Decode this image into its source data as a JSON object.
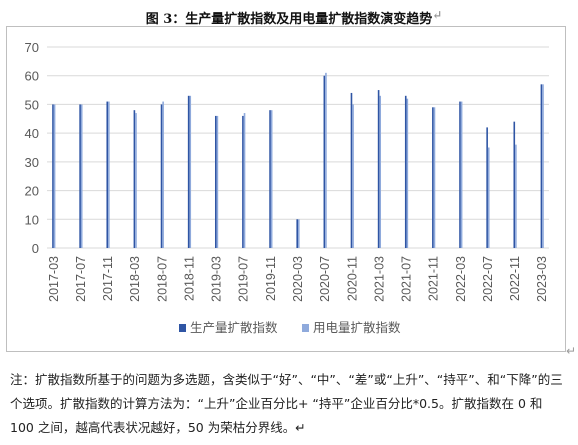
{
  "title": "图 3：生产量扩散指数及用电量扩散指数演变趋势",
  "title_mark": "↵",
  "note": "注：扩散指数所基于的问题为多选题，含类似于“好”、“中”、“差”或“上升”、“持平”、和“下降”的三个选项。扩散指数的计算方法为：“上升”企业百分比+ “持平”企业百分比*0.5。扩散指数在 0 和 100 之间，越高代表状况越好，50 为荣枯分界线。↵",
  "frame_mark": "↵",
  "colors": {
    "series1": "#2f55a4",
    "series2": "#8faadc",
    "grid": "#d9d9d9",
    "axis_text": "#595959"
  },
  "chart_data": {
    "type": "bar",
    "title": "",
    "xlabel": "",
    "ylabel": "",
    "ylim": [
      0,
      70
    ],
    "yticks": [
      0,
      10,
      20,
      30,
      40,
      50,
      60,
      70
    ],
    "grid": true,
    "legend_position": "bottom",
    "tick_labels": [
      "2017-03",
      "2017-07",
      "2017-11",
      "2018-03",
      "2018-07",
      "2018-11",
      "2019-03",
      "2019-07",
      "2019-11",
      "2020-03",
      "2020-07",
      "2020-11",
      "2021-03",
      "2021-07",
      "2021-11",
      "2022-03",
      "2022-07",
      "2022-11",
      "2023-03"
    ],
    "categories": [
      "2017-03",
      "2017-05",
      "2017-07",
      "2017-09",
      "2017-11",
      "2018-01",
      "2018-03",
      "2018-05",
      "2018-07",
      "2018-09",
      "2018-11",
      "2019-01",
      "2019-03",
      "2019-05",
      "2019-07",
      "2019-09",
      "2019-11",
      "2020-01",
      "2020-03",
      "2020-05",
      "2020-07",
      "2020-09",
      "2020-11",
      "2021-01",
      "2021-03",
      "2021-05",
      "2021-07",
      "2021-09",
      "2021-11",
      "2022-01",
      "2022-03",
      "2022-05",
      "2022-07",
      "2022-09",
      "2022-11",
      "2023-01",
      "2023-03"
    ],
    "series": [
      {
        "name": "生产量扩散指数",
        "values": [
          50,
          null,
          50,
          null,
          51,
          null,
          48,
          null,
          50,
          null,
          53,
          null,
          46,
          null,
          46,
          null,
          48,
          null,
          10,
          null,
          60,
          null,
          54,
          null,
          55,
          null,
          53,
          null,
          49,
          null,
          51,
          null,
          42,
          null,
          44,
          null,
          57
        ]
      },
      {
        "name": "用电量扩散指数",
        "values": [
          50,
          null,
          50,
          null,
          51,
          null,
          47,
          null,
          51,
          null,
          53,
          null,
          46,
          null,
          47,
          null,
          48,
          null,
          10,
          null,
          61,
          null,
          50,
          null,
          53,
          null,
          52,
          null,
          49,
          null,
          51,
          null,
          35,
          null,
          36,
          null,
          57
        ]
      }
    ]
  }
}
